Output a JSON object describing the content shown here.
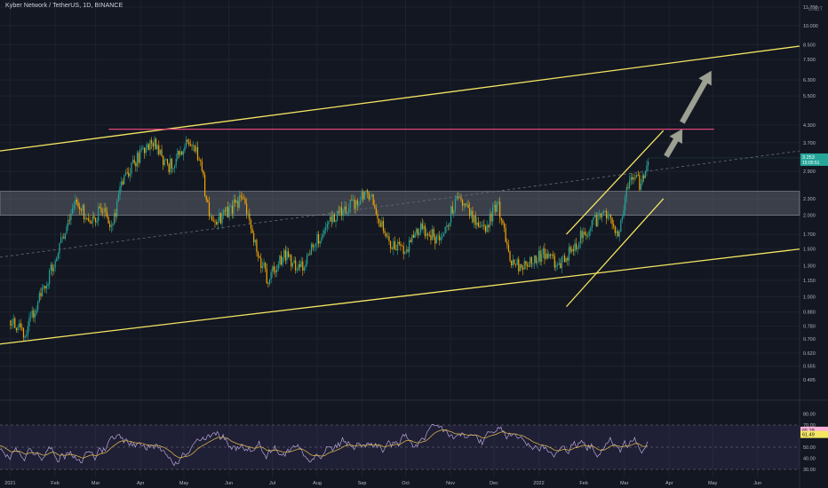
{
  "header": {
    "title": "Kyber Network / TetherUS, 1D, BINANCE",
    "unit": "USDT"
  },
  "colors": {
    "background": "#131722",
    "up": "#26a69a",
    "down": "#f7a600",
    "trendline": "#f5e662",
    "resistance": "#e0457b",
    "zone": "#5d606b",
    "rsi_line": "#b8a6d9",
    "rsi_ma": "#d4b04a",
    "rsi_band": "#7e57c2",
    "arrow": "#b5b9a6",
    "price_tag": "#26a69a",
    "rsi_tag1": "#ffb3d9",
    "rsi_tag2": "#f5e662"
  },
  "chart_data": [
    {
      "type": "candlestick",
      "title": "Kyber Network / TetherUS, 1D, BINANCE",
      "y_scale": "log",
      "ylim": [
        0.48,
        11.7
      ],
      "y_ticks": [
        "11.700",
        "10.000",
        "8.500",
        "7.500",
        "6.300",
        "5.500",
        "4.300",
        "3.700",
        "2.900",
        "2.300",
        "2.000",
        "1.700",
        "1.500",
        "1.300",
        "1.150",
        "1.000",
        "0.880",
        "0.780",
        "0.700",
        "0.620",
        "0.555",
        "0.495"
      ],
      "x_ticks": [
        "2021",
        "Feb",
        "Mar",
        "Apr",
        "May",
        "Jun",
        "Jul",
        "Aug",
        "Sep",
        "Oct",
        "Nov",
        "Dec",
        "2022",
        "Feb",
        "Mar",
        "Apr",
        "May",
        "Jun"
      ],
      "current_price": "3.253",
      "countdown": "15:05:51",
      "close_path": [
        [
          "2021-01-01",
          0.82
        ],
        [
          "2021-01-12",
          0.74
        ],
        [
          "2021-01-25",
          1.1
        ],
        [
          "2021-02-05",
          1.6
        ],
        [
          "2021-02-15",
          2.3
        ],
        [
          "2021-02-25",
          1.9
        ],
        [
          "2021-03-05",
          2.1
        ],
        [
          "2021-03-12",
          1.8
        ],
        [
          "2021-03-20",
          2.7
        ],
        [
          "2021-04-01",
          3.4
        ],
        [
          "2021-04-10",
          3.8
        ],
        [
          "2021-04-20",
          3.0
        ],
        [
          "2021-05-01",
          3.5
        ],
        [
          "2021-05-05",
          3.9
        ],
        [
          "2021-05-12",
          3.2
        ],
        [
          "2021-05-20",
          1.8
        ],
        [
          "2021-06-01",
          2.1
        ],
        [
          "2021-06-10",
          2.3
        ],
        [
          "2021-06-20",
          1.5
        ],
        [
          "2021-06-28",
          1.15
        ],
        [
          "2021-07-10",
          1.45
        ],
        [
          "2021-07-20",
          1.25
        ],
        [
          "2021-07-30",
          1.55
        ],
        [
          "2021-08-10",
          1.9
        ],
        [
          "2021-08-25",
          2.2
        ],
        [
          "2021-09-06",
          2.4
        ],
        [
          "2021-09-20",
          1.6
        ],
        [
          "2021-10-01",
          1.5
        ],
        [
          "2021-10-12",
          1.8
        ],
        [
          "2021-10-25",
          1.6
        ],
        [
          "2021-11-05",
          2.3
        ],
        [
          "2021-11-15",
          2.0
        ],
        [
          "2021-11-25",
          1.8
        ],
        [
          "2021-12-04",
          2.2
        ],
        [
          "2021-12-12",
          1.35
        ],
        [
          "2021-12-22",
          1.3
        ],
        [
          "2022-01-05",
          1.45
        ],
        [
          "2022-01-15",
          1.3
        ],
        [
          "2022-01-25",
          1.55
        ],
        [
          "2022-02-05",
          1.8
        ],
        [
          "2022-02-15",
          2.1
        ],
        [
          "2022-02-25",
          1.75
        ],
        [
          "2022-03-02",
          2.4
        ],
        [
          "2022-03-08",
          2.9
        ],
        [
          "2022-03-12",
          2.6
        ],
        [
          "2022-03-18",
          3.25
        ]
      ],
      "annotations": {
        "upper_channel": [
          [
            "2020-12-25",
            3.45
          ],
          [
            "2022-06-30",
            8.4
          ]
        ],
        "lower_channel": [
          [
            "2020-12-25",
            0.67
          ],
          [
            "2022-06-30",
            1.5
          ]
        ],
        "midline_dashed": [
          [
            "2020-12-25",
            1.4
          ],
          [
            "2022-06-30",
            3.45
          ]
        ],
        "resistance": {
          "from": "2021-03-10",
          "to": "2022-05-02",
          "price": 4.15
        },
        "zone": {
          "low": 2.0,
          "high": 2.45
        },
        "rising_channel_upper": [
          [
            "2022-01-20",
            1.7
          ],
          [
            "2022-03-28",
            4.1
          ]
        ],
        "rising_channel_lower": [
          [
            "2022-01-20",
            0.92
          ],
          [
            "2022-03-28",
            2.3
          ]
        ],
        "arrow_1": [
          [
            "2022-03-30",
            3.3
          ],
          [
            "2022-04-10",
            4.15
          ]
        ],
        "arrow_2": [
          [
            "2022-04-10",
            4.4
          ],
          [
            "2022-04-30",
            6.8
          ]
        ]
      }
    },
    {
      "type": "line",
      "title": "",
      "ylim": [
        26,
        82
      ],
      "y_ticks": [
        "80.00",
        "70.00",
        "60.00",
        "50.00",
        "40.00",
        "30.00"
      ],
      "band": [
        30,
        70
      ],
      "series": [
        {
          "last": "65.28"
        },
        {
          "last": "61.49"
        }
      ]
    }
  ]
}
